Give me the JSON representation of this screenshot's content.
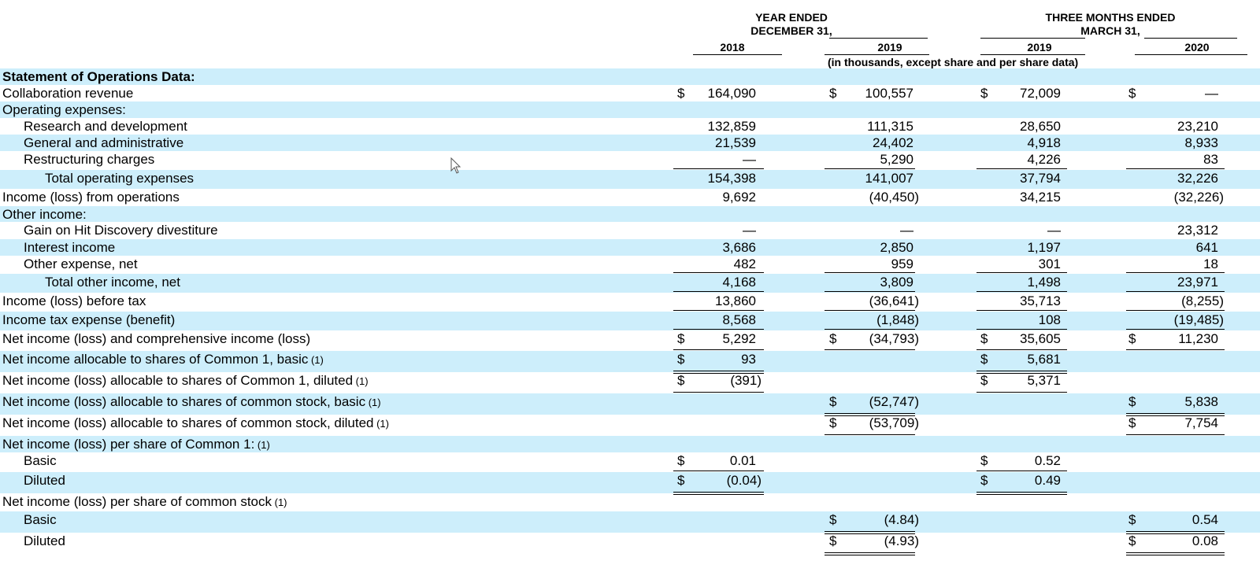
{
  "header": {
    "group_year": [
      "YEAR ENDED",
      "DECEMBER 31,"
    ],
    "group_three": [
      "THREE MONTHS ENDED",
      "MARCH 31,"
    ],
    "columns": [
      "2018",
      "2019",
      "2019",
      "2020"
    ],
    "note": "(in thousands, except share and per share data)"
  },
  "rows": [
    {
      "label": "Statement of Operations Data:",
      "bold": true,
      "indent": 0,
      "shade": true
    },
    {
      "label": "Collaboration revenue",
      "indent": 0,
      "cur": true,
      "v": [
        "164,090",
        "100,557",
        "72,009",
        "—"
      ]
    },
    {
      "label": "Operating expenses:",
      "indent": 0,
      "shade": true
    },
    {
      "label": "Research and development",
      "indent": 1,
      "v": [
        "132,859",
        "111,315",
        "28,650",
        "23,210"
      ]
    },
    {
      "label": "General and administrative",
      "indent": 1,
      "shade": true,
      "v": [
        "21,539",
        "24,402",
        "4,918",
        "8,933"
      ]
    },
    {
      "label": "Restructuring charges",
      "indent": 1,
      "v": [
        "—",
        "5,290",
        "4,226",
        "83"
      ],
      "underline": "single"
    },
    {
      "label": "Total operating expenses",
      "indent": 2,
      "shade": true,
      "v": [
        "154,398",
        "141,007",
        "37,794",
        "32,226"
      ]
    },
    {
      "label": "Income (loss) from operations",
      "indent": 0,
      "v": [
        "9,692",
        "(40,450)",
        "34,215",
        "(32,226)"
      ]
    },
    {
      "label": "Other income:",
      "indent": 0,
      "shade": true
    },
    {
      "label": "Gain on Hit Discovery divestiture",
      "indent": 1,
      "v": [
        "—",
        "—",
        "—",
        "23,312"
      ]
    },
    {
      "label": "Interest income",
      "indent": 1,
      "shade": true,
      "v": [
        "3,686",
        "2,850",
        "1,197",
        "641"
      ]
    },
    {
      "label": "Other expense, net",
      "indent": 1,
      "v": [
        "482",
        "959",
        "301",
        "18"
      ],
      "underline": "single"
    },
    {
      "label": "Total other income, net",
      "indent": 2,
      "shade": true,
      "v": [
        "4,168",
        "3,809",
        "1,498",
        "23,971"
      ],
      "underline": "single"
    },
    {
      "label": "Income (loss) before tax",
      "indent": 0,
      "v": [
        "13,860",
        "(36,641)",
        "35,713",
        "(8,255)"
      ],
      "underline": "single"
    },
    {
      "label": "Income tax expense (benefit)",
      "indent": 0,
      "shade": true,
      "v": [
        "8,568",
        "(1,848)",
        "108",
        "(19,485)"
      ],
      "underline": "single"
    },
    {
      "label": "Net income (loss) and comprehensive income (loss)",
      "indent": 0,
      "cur": true,
      "v": [
        "5,292",
        "(34,793)",
        "35,605",
        "11,230"
      ],
      "underline": "double"
    },
    {
      "label": "Net income allocable to shares of Common 1, basic",
      "fn": "(1)",
      "indent": 0,
      "shade": true,
      "cur": true,
      "v": [
        "93",
        "",
        "5,681",
        ""
      ],
      "underline": "double"
    },
    {
      "label": "Net income (loss) allocable to shares of Common 1, diluted",
      "fn": "(1)",
      "indent": 0,
      "cur": true,
      "v": [
        "(391)",
        "",
        "5,371",
        ""
      ],
      "underline": "double"
    },
    {
      "label": "Net income (loss) allocable to shares of common stock, basic",
      "fn": "(1)",
      "indent": 0,
      "shade": true,
      "cur": true,
      "v": [
        "",
        "(52,747)",
        "",
        "5,838"
      ],
      "underline": "double"
    },
    {
      "label": "Net income (loss) allocable to shares of common stock, diluted",
      "fn": "(1)",
      "indent": 0,
      "cur": true,
      "v": [
        "",
        "(53,709)",
        "",
        "7,754"
      ],
      "underline": "double"
    },
    {
      "label": "Net income (loss) per share of Common 1:",
      "fn": "(1)",
      "indent": 0,
      "shade": true
    },
    {
      "label": "Basic",
      "indent": 1,
      "cur": true,
      "v": [
        "0.01",
        "",
        "0.52",
        ""
      ],
      "underline": "double"
    },
    {
      "label": "Diluted",
      "indent": 1,
      "shade": true,
      "cur": true,
      "v": [
        "(0.04)",
        "",
        "0.49",
        ""
      ],
      "underline": "double"
    },
    {
      "label": "Net income (loss) per share of common stock",
      "fn": "(1)",
      "indent": 0
    },
    {
      "label": "Basic",
      "indent": 1,
      "shade": true,
      "cur": true,
      "v": [
        "",
        "(4.84)",
        "",
        "0.54"
      ],
      "underline": "double"
    },
    {
      "label": "Diluted",
      "indent": 1,
      "cur": true,
      "v": [
        "",
        "(4.93)",
        "",
        "0.08"
      ],
      "underline": "double"
    }
  ],
  "currency_symbol": "$"
}
